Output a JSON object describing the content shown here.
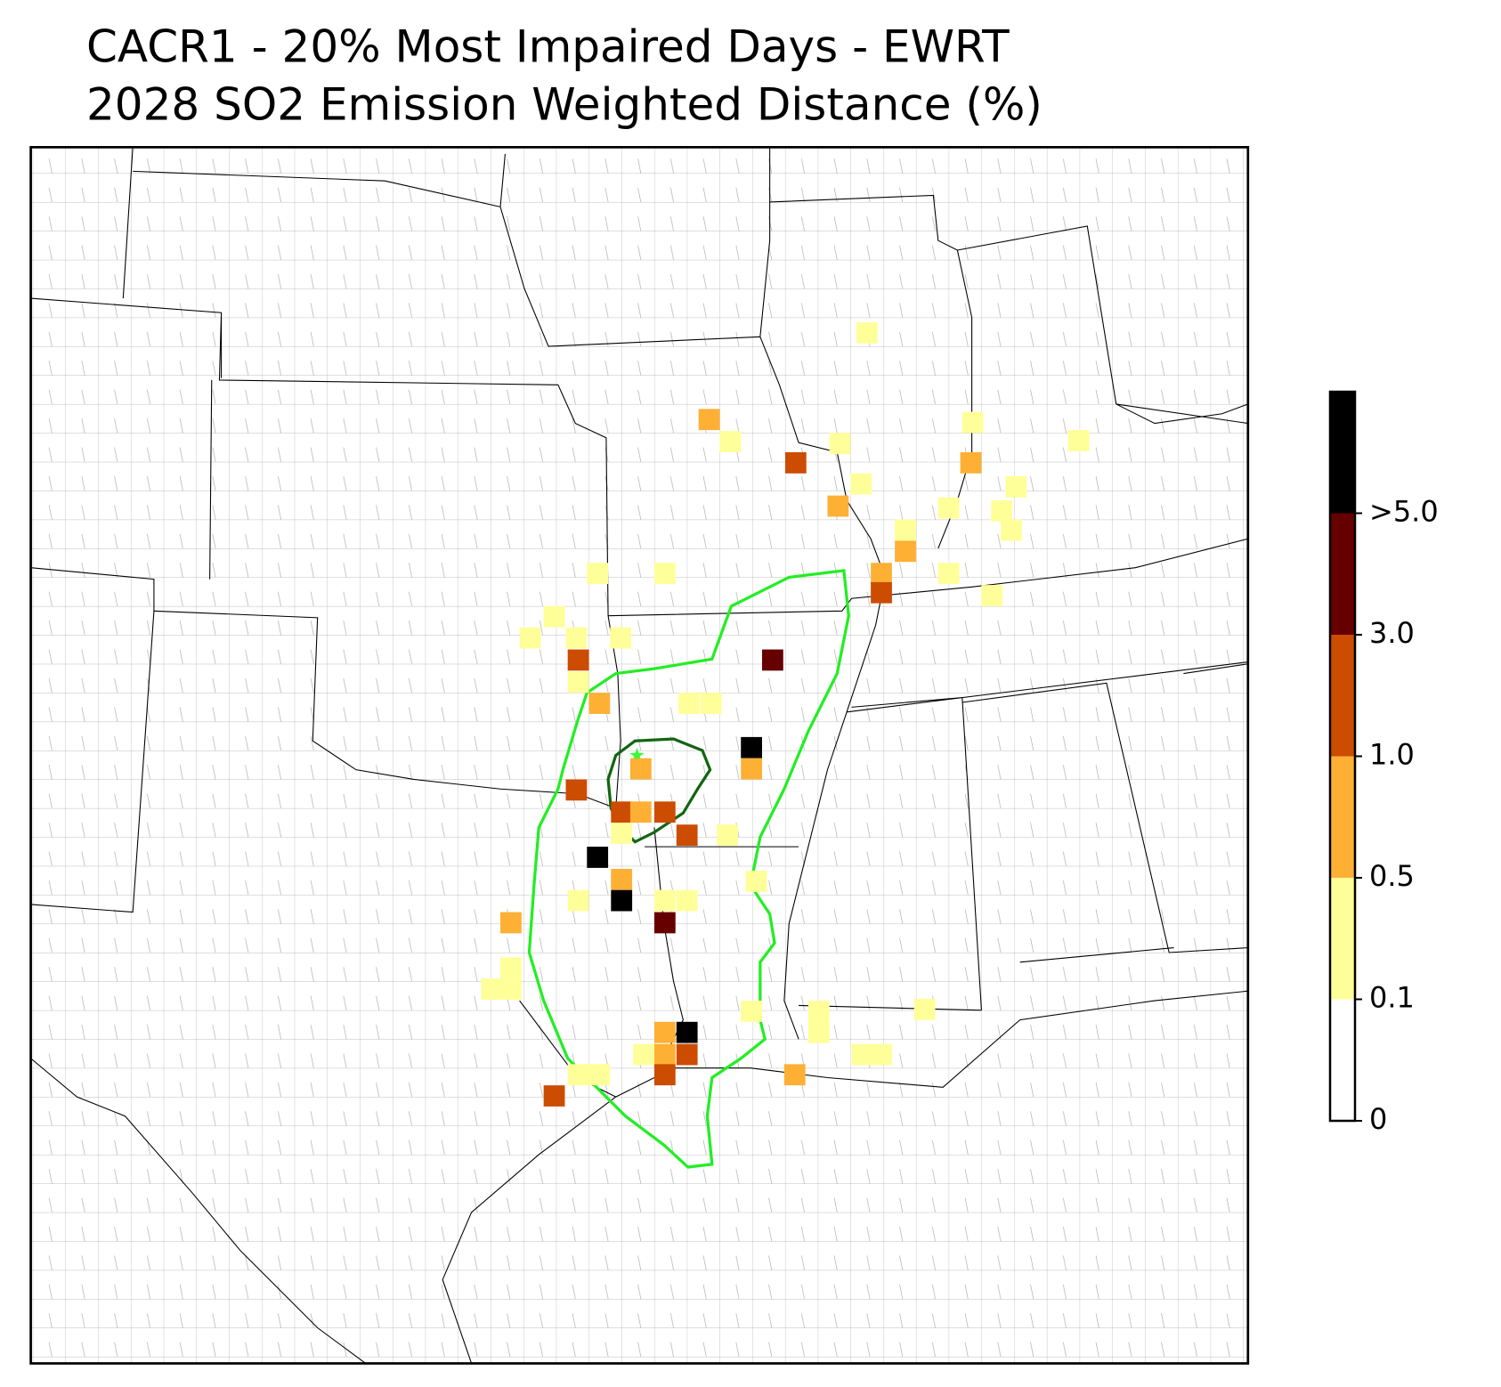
{
  "chart_data": {
    "type": "map",
    "title": "CACR1 - 20% Most Impaired Days - EWRT",
    "subtitle": "2028 SO2 Emission Weighted Distance (%)",
    "colorbar": {
      "colors": [
        "#ffffff",
        "#ffff99",
        "#fdb034",
        "#cc4c02",
        "#660000",
        "#000000"
      ],
      "ticks": [
        0,
        0.1,
        0.5,
        {
          "value": 1,
          "label": "1.0"
        },
        {
          "value": 3,
          "label": "3.0"
        },
        {
          "value": 5,
          "label": ">5.0"
        }
      ]
    }
  }
}
